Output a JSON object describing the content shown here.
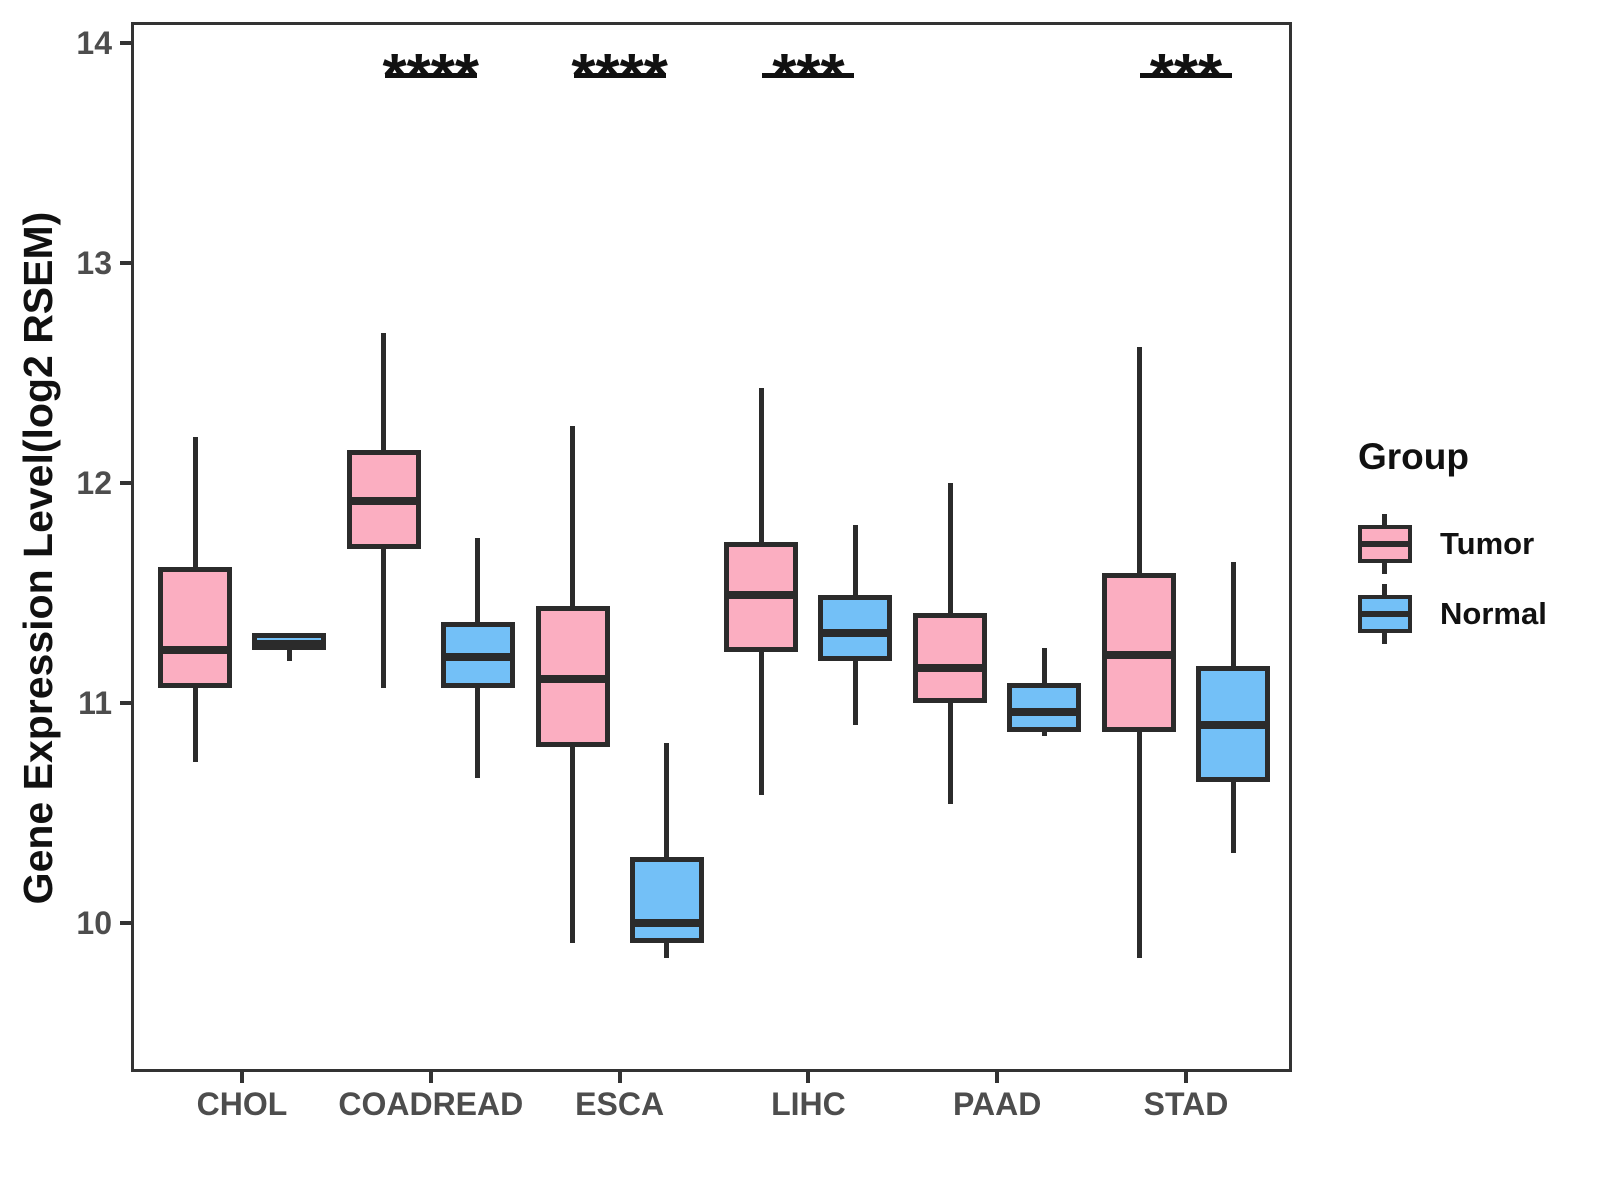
{
  "chart_data": {
    "type": "boxplot",
    "title": "",
    "ylabel": "Gene Expression Level(log2 RSEM)",
    "xlabel": "",
    "categories": [
      "CHOL",
      "COADREAD",
      "ESCA",
      "LIHC",
      "PAAD",
      "STAD"
    ],
    "yticks": [
      10,
      11,
      12,
      13,
      14
    ],
    "ylim": [
      9.3,
      14.1
    ],
    "grid": false,
    "legend": {
      "title": "Group",
      "position": "right"
    },
    "series": [
      {
        "name": "Tumor",
        "color": "#FBAEC1",
        "boxes": [
          {
            "low": 10.73,
            "q1": 11.07,
            "median": 11.24,
            "q3": 11.62,
            "high": 12.21
          },
          {
            "low": 11.07,
            "q1": 11.7,
            "median": 11.92,
            "q3": 12.15,
            "high": 12.68
          },
          {
            "low": 9.91,
            "q1": 10.8,
            "median": 11.11,
            "q3": 11.44,
            "high": 12.26
          },
          {
            "low": 10.58,
            "q1": 11.23,
            "median": 11.49,
            "q3": 11.73,
            "high": 12.43
          },
          {
            "low": 10.54,
            "q1": 11.0,
            "median": 11.16,
            "q3": 11.41,
            "high": 12.0
          },
          {
            "low": 9.84,
            "q1": 10.87,
            "median": 11.22,
            "q3": 11.59,
            "high": 12.62
          }
        ]
      },
      {
        "name": "Normal",
        "color": "#73C0F7",
        "boxes": [
          {
            "low": 11.19,
            "q1": 11.24,
            "median": 11.27,
            "q3": 11.32,
            "high": 11.32
          },
          {
            "low": 10.66,
            "q1": 11.07,
            "median": 11.21,
            "q3": 11.37,
            "high": 11.75
          },
          {
            "low": 9.84,
            "q1": 9.91,
            "median": 10.0,
            "q3": 10.3,
            "high": 10.82
          },
          {
            "low": 10.9,
            "q1": 11.19,
            "median": 11.32,
            "q3": 11.49,
            "high": 11.81
          },
          {
            "low": 10.85,
            "q1": 10.87,
            "median": 10.96,
            "q3": 11.09,
            "high": 11.25
          },
          {
            "low": 10.32,
            "q1": 10.64,
            "median": 10.9,
            "q3": 11.17,
            "high": 11.64
          }
        ]
      }
    ],
    "annotations": [
      {
        "category": "COADREAD",
        "label": "****"
      },
      {
        "category": "ESCA",
        "label": "****"
      },
      {
        "category": "LIHC",
        "label": "***"
      },
      {
        "category": "STAD",
        "label": "***"
      }
    ],
    "style": {
      "box_line_color": "#2b2b2b",
      "panel_border_color": "#333333",
      "axis_text_color": "#4d4d4d",
      "text_color": "#111111",
      "background": "#ffffff"
    }
  }
}
